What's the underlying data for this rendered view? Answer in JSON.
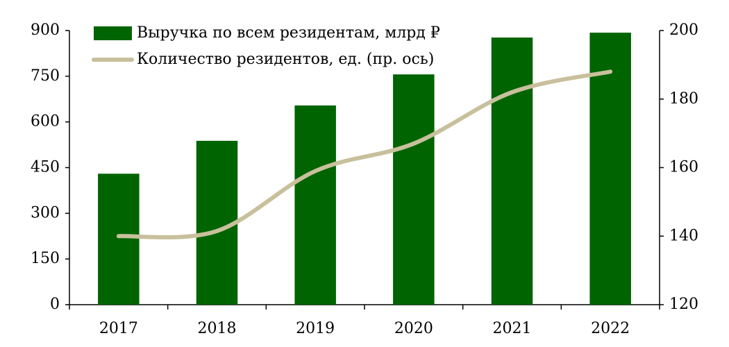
{
  "chart_data": {
    "type": "bar-line",
    "categories": [
      "2017",
      "2018",
      "2019",
      "2020",
      "2021",
      "2022"
    ],
    "series": [
      {
        "name": "Выручка по всем резидентам, млрд ₽",
        "color": "#006400",
        "type": "bar",
        "values": [
          430,
          538,
          654,
          756,
          877,
          893
        ]
      },
      {
        "name": "Количество резидентов, ед. (пр. ось)",
        "color": "#c8c09c",
        "type": "line",
        "axis": "y2",
        "values": [
          140,
          141.5,
          159,
          167,
          182,
          188
        ]
      }
    ],
    "ylim": [
      0,
      900
    ],
    "yticks": [
      0,
      150,
      300,
      450,
      600,
      750,
      900
    ],
    "y2lim": [
      120,
      200
    ],
    "y2ticks": [
      120,
      140,
      160,
      180,
      200
    ],
    "legend": "upper left"
  }
}
